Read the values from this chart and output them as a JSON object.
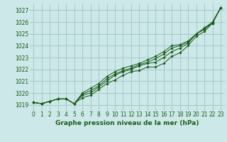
{
  "title": "Graphe pression niveau de la mer (hPa)",
  "bg_color": "#cce8e8",
  "grid_color": "#aacccc",
  "line_color": "#1a5c1a",
  "marker_color": "#1a5c1a",
  "xlim": [
    -0.5,
    23.5
  ],
  "ylim": [
    1018.5,
    1027.5
  ],
  "yticks": [
    1019,
    1020,
    1021,
    1022,
    1023,
    1024,
    1025,
    1026,
    1027
  ],
  "xticks": [
    0,
    1,
    2,
    3,
    4,
    5,
    6,
    7,
    8,
    9,
    10,
    11,
    12,
    13,
    14,
    15,
    16,
    17,
    18,
    19,
    20,
    21,
    22,
    23
  ],
  "series": [
    [
      1019.2,
      1019.1,
      1019.3,
      1019.5,
      1019.5,
      1019.1,
      1019.6,
      1019.8,
      1020.3,
      1020.8,
      1021.1,
      1021.5,
      1021.8,
      1021.9,
      1022.2,
      1022.2,
      1022.5,
      1023.1,
      1023.4,
      1024.0,
      1024.8,
      1025.2,
      1025.9,
      1027.2
    ],
    [
      1019.2,
      1019.1,
      1019.3,
      1019.5,
      1019.5,
      1019.1,
      1019.8,
      1020.0,
      1020.5,
      1021.0,
      1021.5,
      1021.8,
      1022.0,
      1022.3,
      1022.5,
      1022.6,
      1023.0,
      1023.5,
      1023.8,
      1024.2,
      1025.0,
      1025.5,
      1026.0,
      1027.2
    ],
    [
      1019.2,
      1019.1,
      1019.3,
      1019.5,
      1019.5,
      1019.1,
      1019.9,
      1020.2,
      1020.6,
      1021.2,
      1021.6,
      1021.9,
      1022.1,
      1022.4,
      1022.6,
      1022.9,
      1023.3,
      1023.8,
      1024.0,
      1024.3,
      1025.0,
      1025.4,
      1026.0,
      1027.2
    ],
    [
      1019.2,
      1019.1,
      1019.3,
      1019.5,
      1019.5,
      1019.1,
      1020.0,
      1020.4,
      1020.8,
      1021.4,
      1021.8,
      1022.1,
      1022.3,
      1022.5,
      1022.8,
      1023.1,
      1023.5,
      1024.0,
      1024.1,
      1024.4,
      1025.0,
      1025.4,
      1025.9,
      1027.2
    ]
  ]
}
